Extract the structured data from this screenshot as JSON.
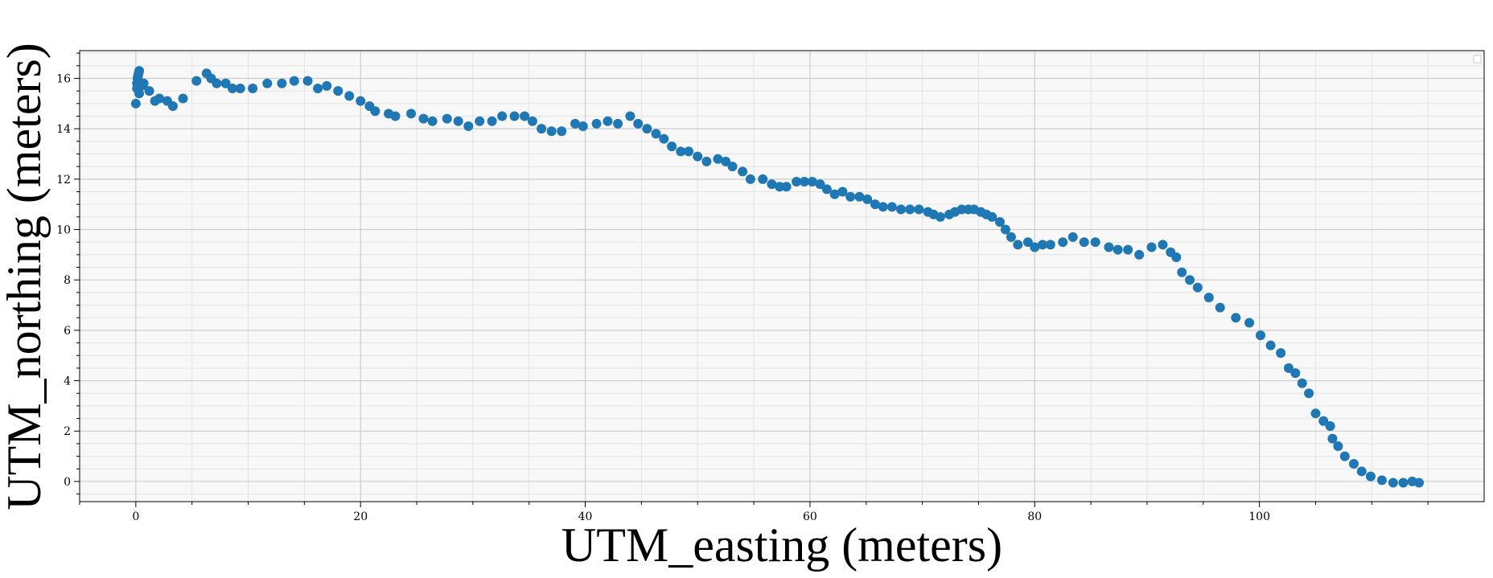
{
  "chart_data": {
    "type": "scatter",
    "title": "",
    "xlabel": "UTM_easting (meters)",
    "ylabel": "UTM_northing (meters)",
    "xlim": [
      -5,
      120
    ],
    "ylim": [
      -0.8,
      17.1
    ],
    "x_ticks": [
      0,
      20,
      40,
      60,
      80,
      100
    ],
    "y_ticks": [
      0,
      2,
      4,
      6,
      8,
      10,
      12,
      14,
      16
    ],
    "x_tick_labels": [
      "0",
      "20",
      "40",
      "60",
      "80",
      "100"
    ],
    "y_tick_labels": [
      "0",
      "2",
      "4",
      "6",
      "8",
      "10",
      "12",
      "14",
      "16"
    ],
    "grid": "major and minor",
    "legend": "top-right (empty)",
    "colors": {
      "marker": "#1f77b4",
      "plot_bg": "#f8f8f8",
      "major_grid": "#cccccc",
      "minor_grid": "#e3e3e3"
    },
    "points": [
      [
        0.0,
        15.0
      ],
      [
        0.1,
        15.8
      ],
      [
        0.15,
        16.0
      ],
      [
        0.2,
        16.1
      ],
      [
        0.25,
        16.2
      ],
      [
        0.3,
        16.3
      ],
      [
        0.1,
        15.6
      ],
      [
        0.3,
        15.4
      ],
      [
        0.5,
        15.7
      ],
      [
        0.6,
        15.8
      ],
      [
        0.7,
        15.8
      ],
      [
        1.2,
        15.5
      ],
      [
        1.7,
        15.1
      ],
      [
        2.1,
        15.2
      ],
      [
        2.8,
        15.1
      ],
      [
        3.3,
        14.9
      ],
      [
        4.2,
        15.2
      ],
      [
        5.4,
        15.9
      ],
      [
        6.3,
        16.2
      ],
      [
        6.7,
        16.0
      ],
      [
        7.2,
        15.8
      ],
      [
        8.0,
        15.8
      ],
      [
        8.6,
        15.6
      ],
      [
        9.3,
        15.6
      ],
      [
        10.4,
        15.6
      ],
      [
        11.7,
        15.8
      ],
      [
        13.0,
        15.8
      ],
      [
        14.1,
        15.9
      ],
      [
        15.3,
        15.9
      ],
      [
        16.2,
        15.6
      ],
      [
        17.0,
        15.7
      ],
      [
        18.0,
        15.5
      ],
      [
        19.0,
        15.3
      ],
      [
        20.0,
        15.1
      ],
      [
        20.8,
        14.9
      ],
      [
        21.3,
        14.7
      ],
      [
        22.5,
        14.6
      ],
      [
        23.1,
        14.5
      ],
      [
        24.5,
        14.6
      ],
      [
        25.6,
        14.4
      ],
      [
        26.4,
        14.3
      ],
      [
        27.7,
        14.4
      ],
      [
        28.7,
        14.3
      ],
      [
        29.6,
        14.1
      ],
      [
        30.6,
        14.3
      ],
      [
        31.7,
        14.3
      ],
      [
        32.6,
        14.5
      ],
      [
        33.7,
        14.5
      ],
      [
        34.6,
        14.5
      ],
      [
        35.3,
        14.3
      ],
      [
        36.1,
        14.0
      ],
      [
        37.0,
        13.9
      ],
      [
        37.9,
        13.9
      ],
      [
        39.1,
        14.2
      ],
      [
        39.8,
        14.1
      ],
      [
        41.0,
        14.2
      ],
      [
        42.0,
        14.3
      ],
      [
        42.9,
        14.2
      ],
      [
        44.0,
        14.5
      ],
      [
        44.7,
        14.2
      ],
      [
        45.5,
        14.0
      ],
      [
        46.3,
        13.8
      ],
      [
        47.0,
        13.6
      ],
      [
        47.7,
        13.3
      ],
      [
        48.5,
        13.1
      ],
      [
        49.2,
        13.1
      ],
      [
        50.0,
        12.9
      ],
      [
        50.8,
        12.7
      ],
      [
        51.8,
        12.8
      ],
      [
        52.5,
        12.7
      ],
      [
        53.1,
        12.5
      ],
      [
        54.0,
        12.3
      ],
      [
        54.7,
        12.0
      ],
      [
        55.8,
        12.0
      ],
      [
        56.6,
        11.8
      ],
      [
        57.3,
        11.7
      ],
      [
        57.9,
        11.7
      ],
      [
        58.8,
        11.9
      ],
      [
        59.5,
        11.9
      ],
      [
        60.2,
        11.9
      ],
      [
        60.9,
        11.8
      ],
      [
        61.5,
        11.6
      ],
      [
        62.2,
        11.4
      ],
      [
        62.9,
        11.5
      ],
      [
        63.6,
        11.3
      ],
      [
        64.4,
        11.3
      ],
      [
        65.1,
        11.2
      ],
      [
        65.8,
        11.0
      ],
      [
        66.5,
        10.9
      ],
      [
        67.3,
        10.9
      ],
      [
        68.1,
        10.8
      ],
      [
        68.9,
        10.8
      ],
      [
        69.7,
        10.8
      ],
      [
        70.5,
        10.7
      ],
      [
        71.0,
        10.6
      ],
      [
        71.6,
        10.5
      ],
      [
        72.4,
        10.6
      ],
      [
        72.9,
        10.7
      ],
      [
        73.5,
        10.8
      ],
      [
        74.1,
        10.8
      ],
      [
        74.6,
        10.8
      ],
      [
        75.2,
        10.7
      ],
      [
        75.7,
        10.6
      ],
      [
        76.2,
        10.5
      ],
      [
        76.9,
        10.3
      ],
      [
        77.4,
        10.0
      ],
      [
        77.9,
        9.7
      ],
      [
        78.5,
        9.4
      ],
      [
        79.4,
        9.5
      ],
      [
        80.0,
        9.3
      ],
      [
        80.7,
        9.4
      ],
      [
        81.4,
        9.4
      ],
      [
        82.5,
        9.5
      ],
      [
        83.4,
        9.7
      ],
      [
        84.4,
        9.5
      ],
      [
        85.4,
        9.5
      ],
      [
        86.6,
        9.3
      ],
      [
        87.4,
        9.2
      ],
      [
        88.3,
        9.2
      ],
      [
        89.3,
        9.0
      ],
      [
        90.4,
        9.3
      ],
      [
        91.4,
        9.4
      ],
      [
        92.1,
        9.1
      ],
      [
        92.6,
        8.9
      ],
      [
        93.1,
        8.3
      ],
      [
        93.8,
        8.0
      ],
      [
        94.5,
        7.7
      ],
      [
        95.5,
        7.3
      ],
      [
        96.5,
        6.9
      ],
      [
        97.9,
        6.5
      ],
      [
        99.1,
        6.3
      ],
      [
        100.1,
        5.8
      ],
      [
        101.0,
        5.4
      ],
      [
        101.9,
        5.1
      ],
      [
        102.6,
        4.5
      ],
      [
        103.2,
        4.3
      ],
      [
        103.8,
        3.9
      ],
      [
        104.4,
        3.5
      ],
      [
        105.0,
        2.7
      ],
      [
        105.7,
        2.4
      ],
      [
        106.3,
        2.2
      ],
      [
        106.5,
        1.7
      ],
      [
        107.0,
        1.4
      ],
      [
        107.6,
        1.0
      ],
      [
        108.4,
        0.7
      ],
      [
        109.1,
        0.4
      ],
      [
        109.9,
        0.2
      ],
      [
        110.9,
        0.05
      ],
      [
        111.9,
        -0.05
      ],
      [
        112.8,
        -0.05
      ],
      [
        113.6,
        0.0
      ],
      [
        114.2,
        -0.05
      ]
    ]
  }
}
